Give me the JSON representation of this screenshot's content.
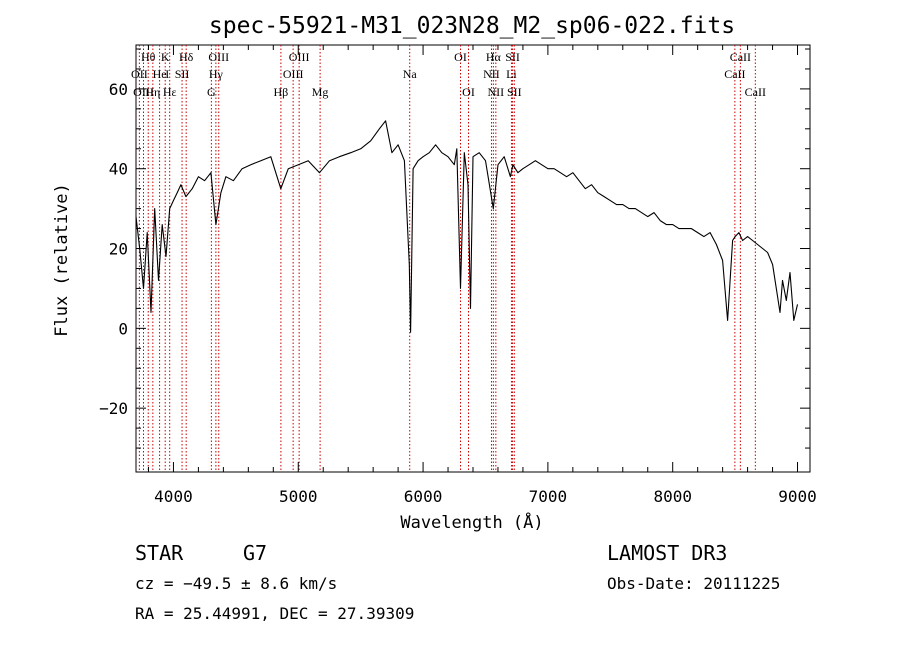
{
  "chart_data": {
    "type": "line",
    "title": "spec-55921-M31_023N28_M2_sp06-022.fits",
    "xlabel": "Wavelength (Å)",
    "ylabel": "Flux (relative)",
    "xlim": [
      3700,
      9100
    ],
    "ylim": [
      -36,
      71
    ],
    "xticks": [
      4000,
      5000,
      6000,
      7000,
      8000,
      9000
    ],
    "yticks": [
      -20,
      0,
      20,
      40,
      60
    ],
    "grid": false,
    "series": [
      {
        "x": [
          3700,
          3730,
          3760,
          3790,
          3820,
          3850,
          3880,
          3910,
          3940,
          3970,
          4000,
          4030,
          4060,
          4100,
          4150,
          4200,
          4250,
          4300,
          4340,
          4380,
          4420,
          4480,
          4550,
          4620,
          4700,
          4780,
          4860,
          4920,
          5000,
          5080,
          5170,
          5250,
          5330,
          5420,
          5500,
          5580,
          5650,
          5700,
          5750,
          5800,
          5850,
          5890,
          5900,
          5920,
          5960,
          6000,
          6050,
          6100,
          6150,
          6200,
          6250,
          6270,
          6300,
          6330,
          6360,
          6380,
          6400,
          6450,
          6500,
          6563,
          6600,
          6650,
          6700,
          6720,
          6760,
          6800,
          6850,
          6900,
          6950,
          7000,
          7050,
          7100,
          7150,
          7200,
          7250,
          7300,
          7350,
          7400,
          7450,
          7500,
          7550,
          7600,
          7650,
          7700,
          7750,
          7800,
          7850,
          7900,
          7950,
          8000,
          8050,
          8100,
          8150,
          8200,
          8250,
          8300,
          8350,
          8400,
          8440,
          8480,
          8500,
          8530,
          8560,
          8600,
          8640,
          8680,
          8720,
          8760,
          8800,
          8830,
          8860,
          8880,
          8910,
          8940,
          8970,
          9000
        ],
        "y": [
          28,
          20,
          10,
          24,
          4,
          30,
          12,
          26,
          18,
          30,
          32,
          34,
          36,
          33,
          35,
          38,
          37,
          39,
          26,
          34,
          38,
          37,
          40,
          41,
          42,
          43,
          35,
          40,
          41,
          42,
          39,
          42,
          43,
          44,
          45,
          47,
          50,
          52,
          44,
          46,
          42,
          16,
          -1,
          40,
          42,
          43,
          44,
          46,
          44,
          43,
          41,
          45,
          10,
          44,
          36,
          5,
          43,
          44,
          42,
          30,
          41,
          43,
          38,
          41,
          39,
          40,
          41,
          42,
          41,
          40,
          40,
          39,
          38,
          39,
          37,
          35,
          36,
          34,
          33,
          32,
          31,
          31,
          30,
          30,
          29,
          28,
          29,
          27,
          26,
          26,
          25,
          25,
          25,
          24,
          23,
          24,
          21,
          17,
          2,
          22,
          23,
          24,
          22,
          23,
          22,
          21,
          20,
          19,
          16,
          10,
          4,
          12,
          7,
          14,
          2,
          6
        ]
      }
    ],
    "annotations": [
      {
        "label": "Hθ",
        "x": 3798,
        "row": 1
      },
      {
        "label": "OII",
        "x": 3727,
        "row": 2
      },
      {
        "label": "OIII",
        "x": 3760,
        "row": 3
      },
      {
        "label": "Hη",
        "x": 3835,
        "row": 3
      },
      {
        "label": "He",
        "x": 3889,
        "row": 2
      },
      {
        "label": "K",
        "x": 3934,
        "row": 1
      },
      {
        "label": "Hε",
        "x": 3970,
        "row": 3
      },
      {
        "label": "I",
        "x": 3950,
        "row": 2
      },
      {
        "label": "SII",
        "x": 4069,
        "row": 2
      },
      {
        "label": "Hδ",
        "x": 4102,
        "row": 1
      },
      {
        "label": "OIII",
        "x": 4363,
        "row": 1
      },
      {
        "label": "Hγ",
        "x": 4340,
        "row": 2
      },
      {
        "label": "G",
        "x": 4304,
        "row": 3
      },
      {
        "label": "Hβ",
        "x": 4861,
        "row": 3
      },
      {
        "label": "OIII",
        "x": 5007,
        "row": 1
      },
      {
        "label": "OIII",
        "x": 4959,
        "row": 2
      },
      {
        "label": "Mg",
        "x": 5175,
        "row": 3
      },
      {
        "label": "Na",
        "x": 5893,
        "row": 2
      },
      {
        "label": "OI",
        "x": 6300,
        "row": 1
      },
      {
        "label": "OI",
        "x": 6364,
        "row": 3
      },
      {
        "label": "Hα",
        "x": 6563,
        "row": 1
      },
      {
        "label": "NII",
        "x": 6548,
        "row": 2
      },
      {
        "label": "NII",
        "x": 6583,
        "row": 3
      },
      {
        "label": "SII",
        "x": 6717,
        "row": 1
      },
      {
        "label": "Li",
        "x": 6708,
        "row": 2
      },
      {
        "label": "SII",
        "x": 6731,
        "row": 3
      },
      {
        "label": "CaII",
        "x": 8542,
        "row": 1
      },
      {
        "label": "CaII",
        "x": 8498,
        "row": 2
      },
      {
        "label": "CaII",
        "x": 8662,
        "row": 3
      }
    ],
    "line_marks": [
      3727,
      3760,
      3798,
      3835,
      3889,
      3934,
      3970,
      4069,
      4102,
      4304,
      4340,
      4363,
      4861,
      4959,
      5007,
      5175,
      5893,
      6300,
      6364,
      6548,
      6563,
      6583,
      6708,
      6717,
      6731,
      8498,
      8542,
      8662
    ]
  },
  "footer": {
    "class": "STAR",
    "subclass": "G7",
    "survey": "LAMOST DR3",
    "cz": "cz = −49.5 ± 8.6 km/s",
    "obs_date": "Obs-Date: 20111225",
    "radec": "RA =  25.44991, DEC =  27.39309"
  }
}
